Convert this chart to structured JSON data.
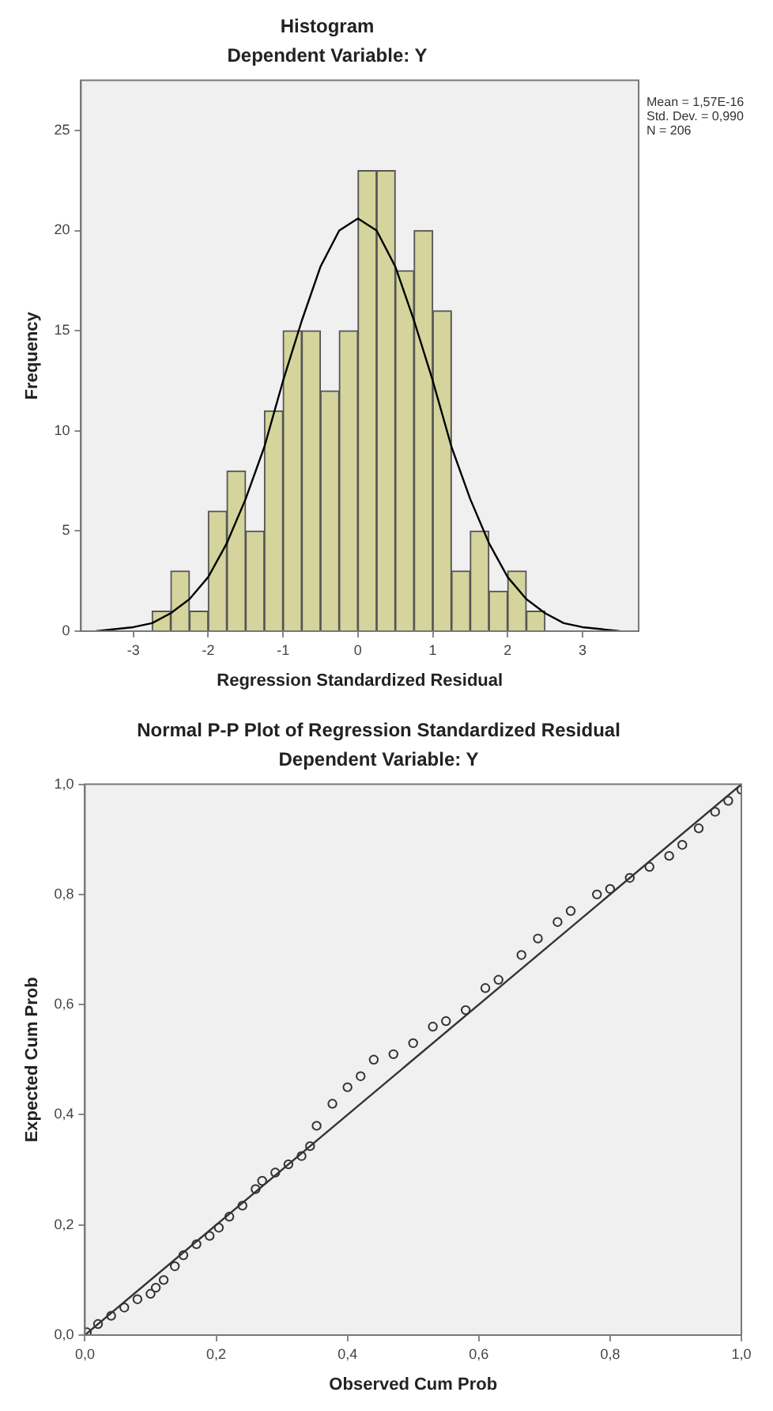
{
  "chart_data": [
    {
      "type": "histogram",
      "title": "Histogram",
      "subtitle": "Dependent Variable: Y",
      "xlabel": "Regression Standardized Residual",
      "ylabel": "Frequency",
      "annotations": [
        "Mean = 1,57E-16",
        "Std. Dev. = 0,990",
        "N = 206"
      ],
      "bins": [
        -2.75,
        -2.5,
        -2.25,
        -2,
        -1.75,
        -1.5,
        -1.25,
        -1,
        -0.75,
        -0.5,
        -0.25,
        0,
        0.25,
        0.5,
        0.75,
        1,
        1.25,
        1.5,
        1.75,
        2,
        2.25,
        2.5
      ],
      "values": [
        1,
        3,
        1,
        6,
        8,
        5,
        11,
        15,
        15,
        12,
        15,
        23,
        23,
        18,
        20,
        16,
        3,
        5,
        2,
        3,
        1
      ],
      "color": "#d4d49c",
      "series": [
        {
          "type": "line",
          "color": "#000000",
          "x": [
            -3.5,
            -3,
            -2.75,
            -2.5,
            -2.25,
            -2,
            -1.75,
            -1.5,
            -1.25,
            -1,
            -0.75,
            -0.5,
            -0.25,
            0,
            0.25,
            0.5,
            0.75,
            1,
            1.25,
            1.5,
            1.75,
            2,
            2.25,
            2.5,
            2.75,
            3,
            3.5
          ],
          "values": [
            0,
            0.2,
            0.4,
            0.9,
            1.6,
            2.7,
            4.4,
            6.6,
            9.2,
            12.5,
            15.5,
            18.2,
            20,
            20.6,
            20,
            18.2,
            15.5,
            12.5,
            9.2,
            6.6,
            4.4,
            2.7,
            1.6,
            0.9,
            0.4,
            0.2,
            0
          ]
        }
      ],
      "xlim": [
        -3.7,
        3.75
      ],
      "xticks": [
        -3,
        -2,
        -1,
        0,
        1,
        2,
        3
      ],
      "ylim": [
        0,
        27.5
      ],
      "yticks": [
        0,
        5,
        10,
        15,
        20,
        25
      ],
      "grid": false,
      "legend": false
    },
    {
      "type": "scatter",
      "title": "Normal P-P Plot of Regression Standardized Residual",
      "subtitle": "Dependent Variable: Y",
      "xlabel": "Observed Cum Prob",
      "ylabel": "Expected Cum Prob",
      "series": [
        {
          "color": "#333333",
          "marker": "circle",
          "x": [
            0.003,
            0.02,
            0.04,
            0.06,
            0.08,
            0.1,
            0.108,
            0.12,
            0.137,
            0.15,
            0.17,
            0.19,
            0.204,
            0.22,
            0.24,
            0.26,
            0.27,
            0.29,
            0.31,
            0.33,
            0.343,
            0.353,
            0.377,
            0.4,
            0.42,
            0.44,
            0.47,
            0.5,
            0.53,
            0.55,
            0.58,
            0.61,
            0.63,
            0.665,
            0.69,
            0.72,
            0.74,
            0.78,
            0.8,
            0.83,
            0.86,
            0.89,
            0.91,
            0.935,
            0.96,
            0.98,
            1
          ],
          "values": [
            0.005,
            0.02,
            0.035,
            0.05,
            0.065,
            0.075,
            0.086,
            0.1,
            0.125,
            0.145,
            0.165,
            0.18,
            0.195,
            0.215,
            0.235,
            0.265,
            0.28,
            0.295,
            0.31,
            0.325,
            0.343,
            0.38,
            0.42,
            0.45,
            0.47,
            0.5,
            0.51,
            0.53,
            0.56,
            0.57,
            0.59,
            0.63,
            0.645,
            0.69,
            0.72,
            0.75,
            0.77,
            0.8,
            0.81,
            0.83,
            0.85,
            0.87,
            0.89,
            0.92,
            0.95,
            0.97,
            0.99
          ]
        },
        {
          "type": "line",
          "color": "#333333",
          "marker": "none",
          "x": [
            0,
            1
          ],
          "values": [
            0,
            1
          ]
        }
      ],
      "xlim": [
        0,
        1
      ],
      "xticks": [
        {
          "value": 0,
          "label": "0,0"
        },
        {
          "value": 0.2,
          "label": "0,2"
        },
        {
          "value": 0.4,
          "label": "0,4"
        },
        {
          "value": 0.6,
          "label": "0,6"
        },
        {
          "value": 0.8,
          "label": "0,8"
        },
        {
          "value": 1,
          "label": "1,0"
        }
      ],
      "ylim": [
        0,
        1
      ],
      "yticks": [
        {
          "value": 0,
          "label": "0,0"
        },
        {
          "value": 0.2,
          "label": "0,2"
        },
        {
          "value": 0.4,
          "label": "0,4"
        },
        {
          "value": 0.6,
          "label": "0,6"
        },
        {
          "value": 0.8,
          "label": "0,8"
        },
        {
          "value": 1,
          "label": "1,0"
        }
      ],
      "grid": false,
      "legend": false
    }
  ]
}
